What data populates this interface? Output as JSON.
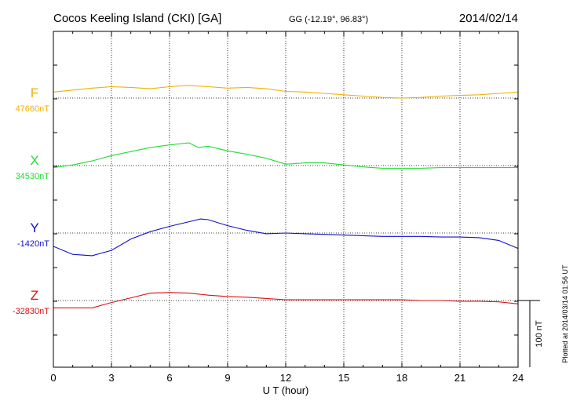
{
  "header": {
    "station": "Cocos Keeling Island (CKI)  [GA]",
    "coords": "GG (-12.19°,  96.83°)",
    "date": "2014/02/14"
  },
  "side_note": "Plotted at 2014/03/14 01:56 UT",
  "scale_bar": {
    "label": "100 nT",
    "value": 100
  },
  "chart_data": {
    "type": "line",
    "xlabel": "U T (hour)",
    "xlim": [
      0,
      24
    ],
    "x_ticks": [
      "0",
      "3",
      "6",
      "9",
      "12",
      "15",
      "18",
      "21",
      "24"
    ],
    "grid": true,
    "series": [
      {
        "name": "F",
        "baseline_label": "47660nT",
        "baseline": 47660,
        "color": "#f0b000",
        "x": [
          0,
          1,
          2,
          3,
          4,
          5,
          6,
          7,
          8,
          9,
          10,
          11,
          12,
          13,
          14,
          15,
          16,
          17,
          18,
          19,
          20,
          21,
          22,
          23,
          24
        ],
        "values": [
          47669,
          47672,
          47675,
          47677,
          47676,
          47674,
          47677,
          47679,
          47677,
          47675,
          47676,
          47674,
          47670,
          47669,
          47667,
          47665,
          47663,
          47661,
          47660,
          47661,
          47663,
          47664,
          47665,
          47667,
          47669
        ]
      },
      {
        "name": "X",
        "baseline_label": "34530nT",
        "baseline": 34530,
        "color": "#22dd33",
        "x": [
          0,
          1,
          2,
          3,
          4,
          5,
          6,
          7,
          7.5,
          8,
          9,
          10,
          11,
          12,
          13,
          14,
          15,
          16,
          17,
          18,
          19,
          20,
          21,
          22,
          23,
          24
        ],
        "values": [
          34527,
          34531,
          34537,
          34545,
          34551,
          34557,
          34561,
          34564,
          34557,
          34559,
          34552,
          34547,
          34541,
          34532,
          34534,
          34534,
          34531,
          34528,
          34526,
          34526,
          34526,
          34527,
          34527,
          34527,
          34527,
          34527
        ]
      },
      {
        "name": "Y",
        "baseline_label": "-1420nT",
        "baseline": -1420,
        "color": "#1010cc",
        "x": [
          0,
          1,
          2,
          3,
          4,
          5,
          6,
          7,
          7.6,
          8,
          9,
          10,
          11,
          12,
          13,
          14,
          15,
          16,
          17,
          18,
          19,
          20,
          21,
          22,
          23,
          24
        ],
        "values": [
          -1440,
          -1452,
          -1454,
          -1446,
          -1429,
          -1418,
          -1410,
          -1403,
          -1399,
          -1400,
          -1409,
          -1416,
          -1421,
          -1420,
          -1421,
          -1422,
          -1423,
          -1424,
          -1425,
          -1425,
          -1425,
          -1426,
          -1426,
          -1427,
          -1431,
          -1443
        ]
      },
      {
        "name": "Z",
        "baseline_label": "-32830nT",
        "baseline": -32830,
        "color": "#dd1111",
        "x": [
          0,
          1,
          2,
          3,
          4,
          5,
          6,
          7,
          8,
          9,
          10,
          11,
          12,
          13,
          14,
          15,
          16,
          17,
          18,
          19,
          20,
          21,
          22,
          23,
          24
        ],
        "values": [
          -32841,
          -32841,
          -32841,
          -32833,
          -32826,
          -32819,
          -32818,
          -32819,
          -32822,
          -32824,
          -32825,
          -32827,
          -32829,
          -32829,
          -32829,
          -32829,
          -32829,
          -32829,
          -32829,
          -32830,
          -32830,
          -32831,
          -32831,
          -32832,
          -32835
        ]
      }
    ]
  }
}
